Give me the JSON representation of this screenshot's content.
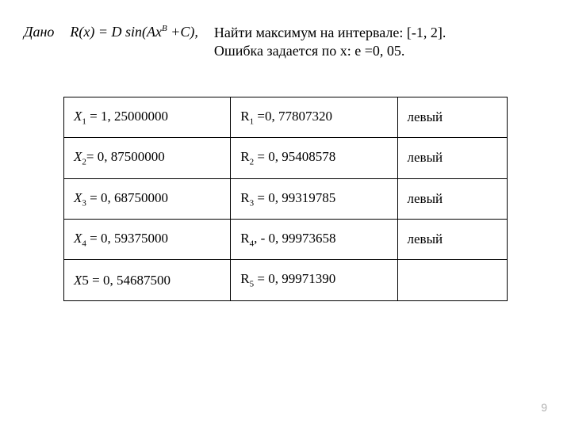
{
  "header": {
    "given": "Дано",
    "formula_prefix": "R(x) = D sin(Ах",
    "formula_exp": "В",
    "formula_suffix": " +С),",
    "task_line1": "Найти максимум на интервале: [-1, 2].",
    "task_line2": "Ошибка задается по х: e =0, 05."
  },
  "table": {
    "rows": [
      {
        "x_var": "X",
        "x_sub": "1",
        "x_val": " = 1, 25000000",
        "r_var": "R",
        "r_sub": "1",
        "r_val": " =0, 77807320",
        "side": "левый"
      },
      {
        "x_var": "X",
        "x_sub": "2",
        "x_val": "= 0, 87500000",
        "r_var": "R",
        "r_sub": "2",
        "r_val": " = 0, 95408578",
        "side": "левый"
      },
      {
        "x_var": "X",
        "x_sub": "3",
        "x_val": " = 0, 68750000",
        "r_var": "R",
        "r_sub": "3",
        "r_val": " = 0, 99319785",
        "side": "левый"
      },
      {
        "x_var": "X",
        "x_sub": "4",
        "x_val": " = 0, 59375000",
        "r_var": "R",
        "r_sub": "4",
        "r_val": ", - 0, 99973658",
        "side": "левый"
      },
      {
        "x_var": "X",
        "x_sub": "",
        "x_sub_plain": "5",
        "x_val": " = 0, 54687500",
        "r_var": "R",
        "r_sub": "5",
        "r_val": " = 0, 99971390",
        "side": ""
      }
    ]
  },
  "page_number": "9",
  "colors": {
    "background": "#ffffff",
    "text": "#000000",
    "border": "#000000",
    "page_num": "#b0b0b0"
  }
}
